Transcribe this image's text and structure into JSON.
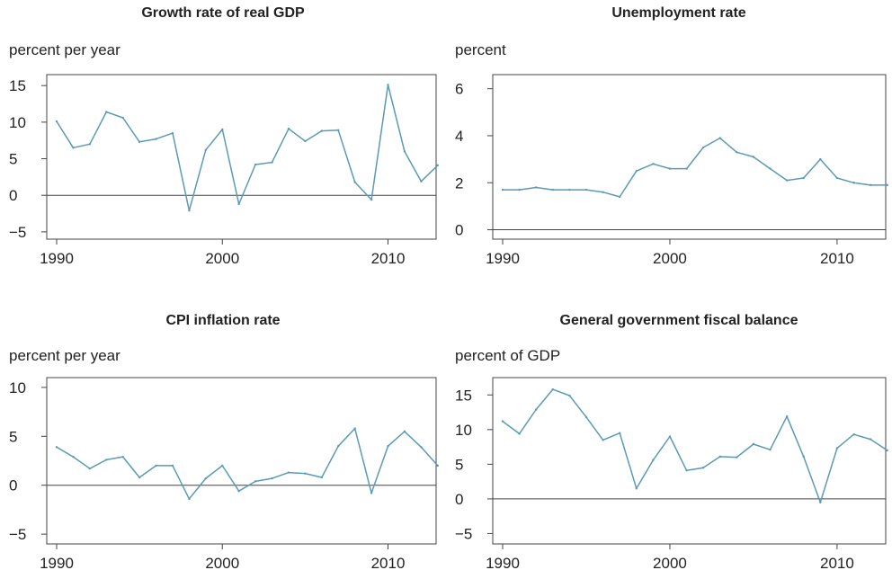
{
  "chart_data": [
    {
      "type": "line",
      "title": "Growth rate of real GDP",
      "ylabel": "percent per year",
      "xlim": [
        1990,
        2013.5
      ],
      "ylim": [
        -6,
        16.5
      ],
      "xticks": [
        1990,
        2000,
        2010
      ],
      "yticks": [
        15,
        10,
        5,
        0,
        -5
      ],
      "ytick_labels": [
        "15",
        "10",
        "5",
        "0",
        "−5"
      ],
      "zero_line": true,
      "color": "#5b9ab5",
      "x": [
        1990,
        1991,
        1992,
        1993,
        1994,
        1995,
        1996,
        1997,
        1998,
        1999,
        2000,
        2001,
        2002,
        2003,
        2004,
        2005,
        2006,
        2007,
        2008,
        2009,
        2010,
        2011,
        2012,
        2013
      ],
      "series": [
        {
          "values": [
            10.1,
            6.5,
            7.0,
            11.4,
            10.6,
            7.3,
            7.7,
            8.5,
            -2.1,
            6.2,
            9.0,
            -1.2,
            4.2,
            4.5,
            9.1,
            7.4,
            8.8,
            8.9,
            1.8,
            -0.6,
            15.1,
            6.0,
            1.9,
            4.1
          ]
        }
      ]
    },
    {
      "type": "line",
      "title": "Unemployment rate",
      "ylabel": "percent",
      "xlim": [
        1990,
        2013.5
      ],
      "ylim": [
        -0.4,
        6.6
      ],
      "xticks": [
        1990,
        2000,
        2010
      ],
      "yticks": [
        6,
        4,
        2,
        0
      ],
      "ytick_labels": [
        "6",
        "4",
        "2",
        "0"
      ],
      "zero_line": true,
      "color": "#5b9ab5",
      "x": [
        1990,
        1991,
        1992,
        1993,
        1994,
        1995,
        1996,
        1997,
        1998,
        1999,
        2000,
        2001,
        2002,
        2003,
        2004,
        2005,
        2006,
        2007,
        2008,
        2009,
        2010,
        2011,
        2012,
        2013
      ],
      "series": [
        {
          "values": [
            1.7,
            1.7,
            1.8,
            1.7,
            1.7,
            1.7,
            1.6,
            1.4,
            2.5,
            2.8,
            2.6,
            2.6,
            3.5,
            3.9,
            3.3,
            3.1,
            2.6,
            2.1,
            2.2,
            3.0,
            2.2,
            2.0,
            1.9,
            1.9
          ]
        }
      ]
    },
    {
      "type": "line",
      "title": "CPI inflation rate",
      "ylabel": "percent per year",
      "xlim": [
        1990,
        2013.5
      ],
      "ylim": [
        -6,
        11
      ],
      "xticks": [
        1990,
        2000,
        2010
      ],
      "yticks": [
        10,
        5,
        0,
        -5
      ],
      "ytick_labels": [
        "10",
        "5",
        "0",
        "−5"
      ],
      "zero_line": true,
      "color": "#5b9ab5",
      "x": [
        1990,
        1991,
        1992,
        1993,
        1994,
        1995,
        1996,
        1997,
        1998,
        1999,
        2000,
        2001,
        2002,
        2003,
        2004,
        2005,
        2006,
        2007,
        2008,
        2009,
        2010,
        2011,
        2012,
        2013
      ],
      "series": [
        {
          "values": [
            3.9,
            2.9,
            1.7,
            2.6,
            2.9,
            0.8,
            2.0,
            2.0,
            -1.4,
            0.7,
            2.0,
            -0.6,
            0.4,
            0.7,
            1.3,
            1.2,
            0.8,
            4.0,
            5.8,
            -0.8,
            4.0,
            5.5,
            3.9,
            2.0
          ]
        }
      ]
    },
    {
      "type": "line",
      "title": "General government fiscal balance",
      "ylabel": "percent of GDP",
      "xlim": [
        1990,
        2013.5
      ],
      "ylim": [
        -6.5,
        17.5
      ],
      "xticks": [
        1990,
        2000,
        2010
      ],
      "yticks": [
        15,
        10,
        5,
        0,
        -5
      ],
      "ytick_labels": [
        "15",
        "10",
        "5",
        "0",
        "−5"
      ],
      "zero_line": true,
      "color": "#5b9ab5",
      "x": [
        1990,
        1991,
        1992,
        1993,
        1994,
        1995,
        1996,
        1997,
        1998,
        1999,
        2000,
        2001,
        2002,
        2003,
        2004,
        2005,
        2006,
        2007,
        2008,
        2009,
        2010,
        2011,
        2012,
        2013
      ],
      "series": [
        {
          "values": [
            11.2,
            9.4,
            12.9,
            15.8,
            14.9,
            11.8,
            8.5,
            9.5,
            1.5,
            5.6,
            9.0,
            4.1,
            4.5,
            6.1,
            6.0,
            7.9,
            7.1,
            11.9,
            6.1,
            -0.5,
            7.3,
            9.3,
            8.6,
            7.0
          ]
        }
      ]
    }
  ]
}
